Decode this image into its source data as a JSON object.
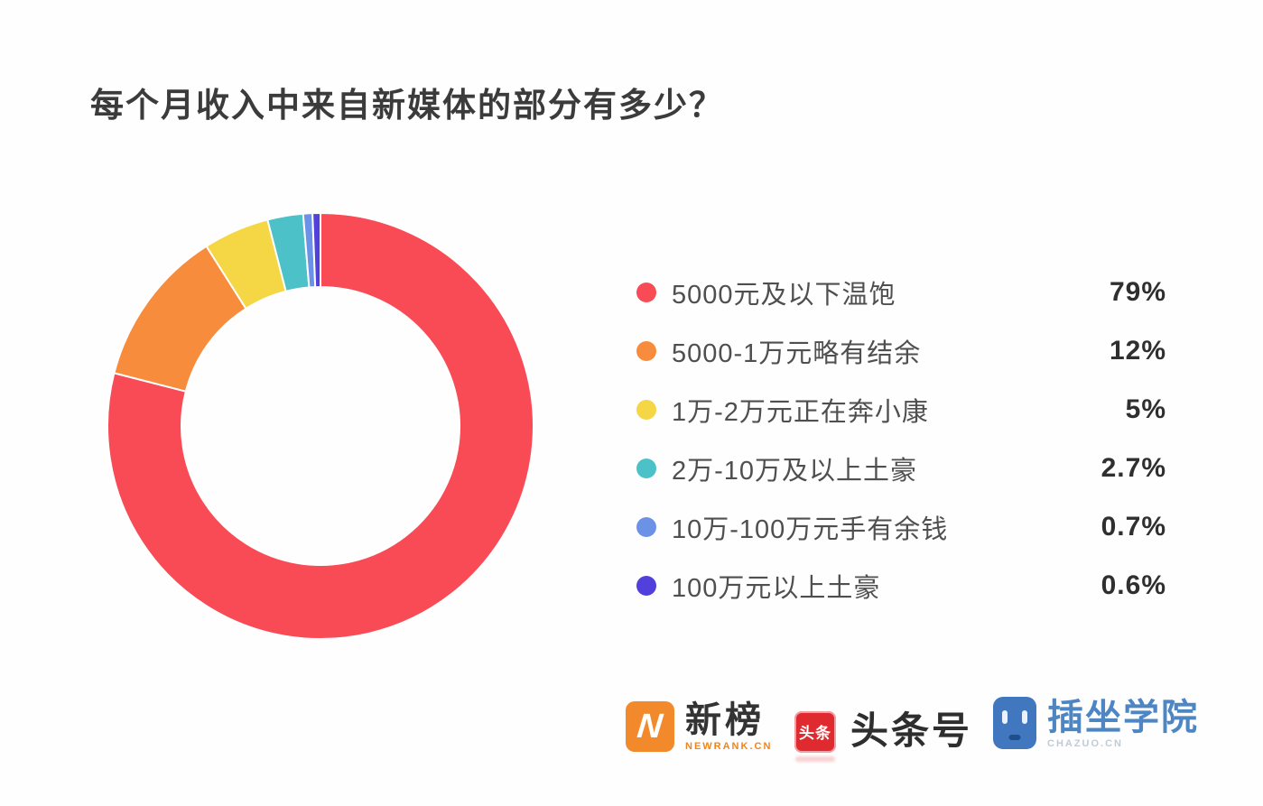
{
  "title": "每个月收入中来自新媒体的部分有多少？",
  "chart_data": {
    "type": "pie",
    "subtype": "donut",
    "title": "每个月收入中来自新媒体的部分有多少？",
    "categories": [
      "5000元及以下温饱",
      "5000-1万元略有结余",
      "1万-2万元正在奔小康",
      "2万-10万及以上土豪",
      "10万-100万元手有余钱",
      "100万元以上土豪"
    ],
    "values": [
      79,
      12,
      5,
      2.7,
      0.7,
      0.6
    ],
    "value_labels": [
      "79%",
      "12%",
      "5%",
      "2.7%",
      "0.7%",
      "0.6%"
    ],
    "colors": [
      "#F84B55",
      "#F88C3D",
      "#F5D645",
      "#4CC2C8",
      "#6C92E8",
      "#5140DB"
    ],
    "start_angle_deg": 0,
    "direction": "clockwise",
    "legend_position": "right",
    "slice_gap_color": "#ffffff"
  },
  "footer": {
    "brands": [
      {
        "id": "newrank",
        "name": "新榜",
        "subtext": "NEWRANK.CN",
        "badge_letter": "N",
        "badge_color": "#F28A2B",
        "subtext_color": "#F08519"
      },
      {
        "id": "toutiao",
        "name": "头条号",
        "badge_text": "头条",
        "badge_color": "#DF2B30"
      },
      {
        "id": "chazuo",
        "name": "插坐学院",
        "subtext": "CHAZUO.CN",
        "badge_color": "#4077BE",
        "name_color": "#4E86C4"
      }
    ]
  }
}
